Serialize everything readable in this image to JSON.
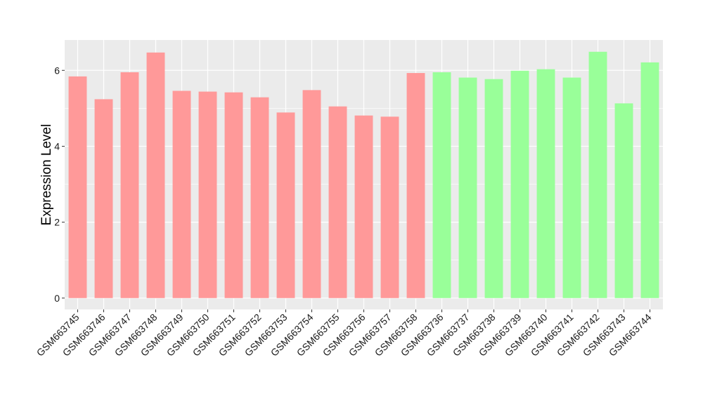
{
  "chart_data": {
    "type": "bar",
    "xlabel": "",
    "ylabel": "Expression Level",
    "ylim": [
      -0.3,
      6.8
    ],
    "yticks": [
      0,
      2,
      4,
      6
    ],
    "grid": true,
    "legend": "none",
    "colors": {
      "group_a": "#ff9999",
      "group_b": "#99ff99",
      "panel": "#ebebeb",
      "grid": "#ffffff"
    },
    "categories": [
      "GSM663745",
      "GSM663746",
      "GSM663747",
      "GSM663748",
      "GSM663749",
      "GSM663750",
      "GSM663751",
      "GSM663752",
      "GSM663753",
      "GSM663754",
      "GSM663755",
      "GSM663756",
      "GSM663757",
      "GSM663758",
      "GSM663736",
      "GSM663737",
      "GSM663738",
      "GSM663739",
      "GSM663740",
      "GSM663741",
      "GSM663742",
      "GSM663743",
      "GSM663744"
    ],
    "values": [
      5.84,
      5.24,
      5.95,
      6.47,
      5.46,
      5.44,
      5.42,
      5.29,
      4.89,
      5.48,
      5.05,
      4.81,
      4.78,
      5.93,
      5.95,
      5.81,
      5.77,
      5.99,
      6.03,
      5.81,
      6.49,
      5.13,
      6.21
    ],
    "groups": [
      "a",
      "a",
      "a",
      "a",
      "a",
      "a",
      "a",
      "a",
      "a",
      "a",
      "a",
      "a",
      "a",
      "a",
      "b",
      "b",
      "b",
      "b",
      "b",
      "b",
      "b",
      "b",
      "b"
    ]
  }
}
